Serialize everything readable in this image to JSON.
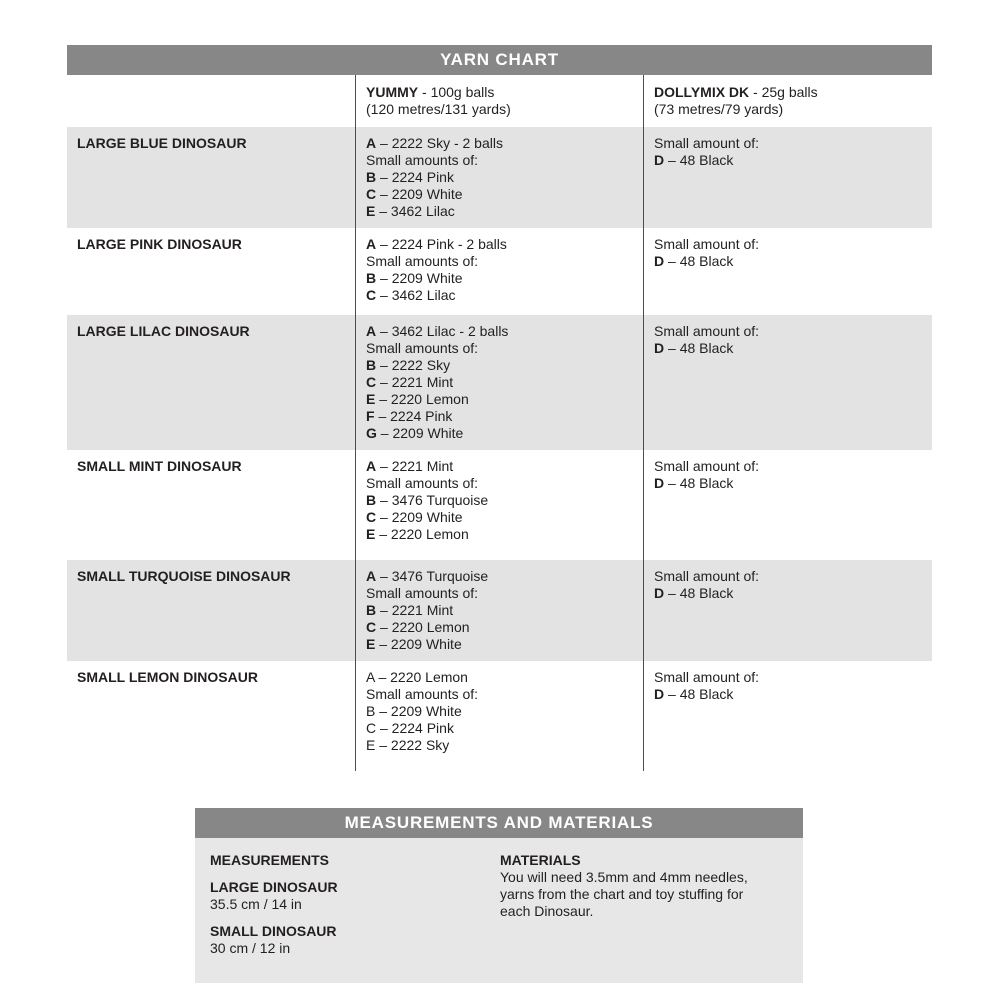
{
  "colors": {
    "header_bar": "#878787",
    "row_shade": "#e3e3e3",
    "panel_shade": "#e7e7e7",
    "divider": "#4d4d4d",
    "text": "#231f20"
  },
  "yarn_chart": {
    "title": "YARN CHART",
    "columns": {
      "yummy": {
        "name": "YUMMY",
        "desc": " - 100g balls",
        "sub": "(120 metres/131 yards)"
      },
      "dollymix": {
        "name": "DOLLYMIX DK",
        "desc": " - 25g balls",
        "sub": "(73 metres/79 yards)"
      }
    },
    "rows": [
      {
        "label": "LARGE BLUE DINOSAUR",
        "yummy": [
          {
            "b": "A",
            "t": " – 2222 Sky - 2 balls"
          },
          {
            "b": "",
            "t": "Small amounts of:"
          },
          {
            "b": "B",
            "t": " – 2224 Pink"
          },
          {
            "b": "C",
            "t": " – 2209 White"
          },
          {
            "b": "E",
            "t": " – 3462 Lilac"
          }
        ],
        "dollymix": [
          {
            "b": "",
            "t": "Small amount of:"
          },
          {
            "b": "D",
            "t": " – 48 Black"
          }
        ]
      },
      {
        "label": "LARGE PINK DINOSAUR",
        "yummy": [
          {
            "b": "A",
            "t": " – 2224 Pink - 2 balls"
          },
          {
            "b": "",
            "t": "Small amounts of:"
          },
          {
            "b": "B",
            "t": " – 2209 White"
          },
          {
            "b": "C",
            "t": " – 3462 Lilac"
          }
        ],
        "dollymix": [
          {
            "b": "",
            "t": "Small amount of:"
          },
          {
            "b": "D",
            "t": " – 48 Black"
          }
        ]
      },
      {
        "label": "LARGE LILAC DINOSAUR",
        "yummy": [
          {
            "b": "A",
            "t": " – 3462 Lilac - 2 balls"
          },
          {
            "b": "",
            "t": "Small amounts of:"
          },
          {
            "b": "B",
            "t": " – 2222 Sky"
          },
          {
            "b": "C",
            "t": " – 2221 Mint"
          },
          {
            "b": "E",
            "t": " – 2220 Lemon"
          },
          {
            "b": "F",
            "t": " – 2224 Pink"
          },
          {
            "b": "G",
            "t": " – 2209 White"
          }
        ],
        "dollymix": [
          {
            "b": "",
            "t": "Small amount of:"
          },
          {
            "b": "D",
            "t": " – 48 Black"
          }
        ]
      },
      {
        "label": "SMALL MINT DINOSAUR",
        "yummy": [
          {
            "b": "A",
            "t": " – 2221 Mint"
          },
          {
            "b": "",
            "t": "Small amounts of:"
          },
          {
            "b": "B",
            "t": " – 3476 Turquoise"
          },
          {
            "b": "C",
            "t": " – 2209 White"
          },
          {
            "b": "E",
            "t": " – 2220 Lemon"
          }
        ],
        "dollymix": [
          {
            "b": "",
            "t": "Small amount of:"
          },
          {
            "b": "D",
            "t": " – 48 Black"
          }
        ]
      },
      {
        "label": "SMALL TURQUOISE DINOSAUR",
        "yummy": [
          {
            "b": "A",
            "t": " – 3476 Turquoise"
          },
          {
            "b": "",
            "t": "Small amounts of:"
          },
          {
            "b": "B",
            "t": " – 2221 Mint"
          },
          {
            "b": "C",
            "t": " – 2220 Lemon"
          },
          {
            "b": "E",
            "t": " – 2209 White"
          }
        ],
        "dollymix": [
          {
            "b": "",
            "t": "Small amount of:"
          },
          {
            "b": "D",
            "t": " – 48 Black"
          }
        ]
      },
      {
        "label": "SMALL LEMON DINOSAUR",
        "yummy": [
          {
            "b": "",
            "t": "A – 2220 Lemon"
          },
          {
            "b": "",
            "t": "Small amounts of:"
          },
          {
            "b": "",
            "t": "B – 2209 White"
          },
          {
            "b": "",
            "t": "C – 2224 Pink"
          },
          {
            "b": "",
            "t": "E – 2222 Sky"
          }
        ],
        "dollymix": [
          {
            "b": "",
            "t": "Small amount of:"
          },
          {
            "b": "D",
            "t": " – 48 Black"
          }
        ]
      }
    ]
  },
  "measurements_materials": {
    "title": "MEASUREMENTS AND MATERIALS",
    "measurements": {
      "heading": "MEASUREMENTS",
      "large": {
        "label": "LARGE DINOSAUR",
        "value": "35.5 cm / 14 in"
      },
      "small": {
        "label": "SMALL DINOSAUR",
        "value": "30 cm / 12 in"
      }
    },
    "materials": {
      "heading": "MATERIALS",
      "text": "You will need 3.5mm and 4mm needles, yarns from the chart and toy stuffing for each Dinosaur."
    }
  }
}
